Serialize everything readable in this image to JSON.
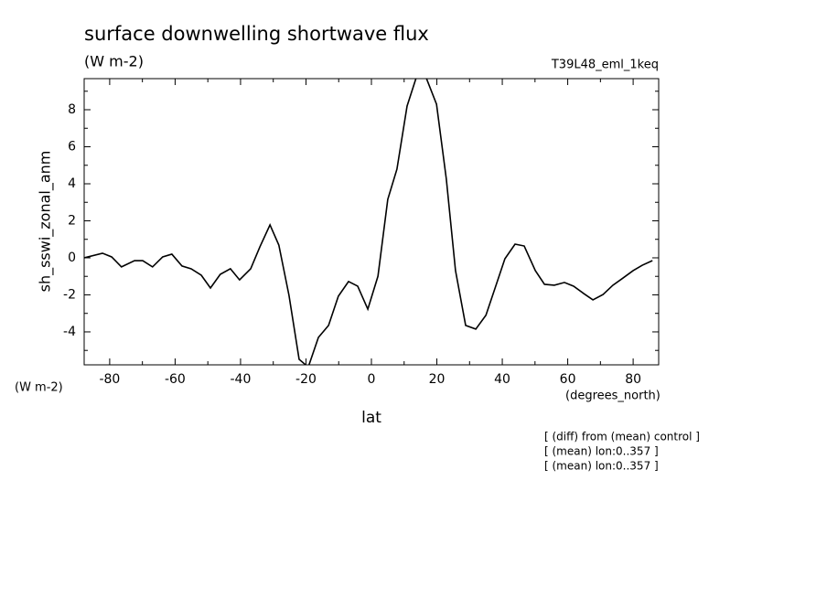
{
  "chart_data": {
    "type": "line",
    "title": "surface downwelling shortwave flux",
    "subtitle": "(W m-2)",
    "dataset": "T39L48_eml_1keq",
    "y_label": "sh_sswi_zonal_anm",
    "y_units": "(W m-2)",
    "x_units": "(degrees_north)",
    "x_label": "lat",
    "notes": [
      "[ (diff) from (mean) control ]",
      "[ (mean) lon:0..357 ]",
      "[ (mean) lon:0..357 ]"
    ],
    "xlim": [
      -87.8,
      87.8
    ],
    "ylim": [
      -5.78,
      9.68
    ],
    "xticks": [
      -80,
      -60,
      -40,
      -20,
      0,
      20,
      40,
      60,
      80
    ],
    "yticks": [
      -4,
      -2,
      0,
      2,
      4,
      6,
      8
    ],
    "series": [
      {
        "color": "#000000",
        "x": [
          -87.8,
          -82.2,
          -79.4,
          -76.4,
          -72.4,
          -69.9,
          -66.9,
          -63.8,
          -61.0,
          -57.9,
          -55.1,
          -52.0,
          -49.2,
          -46.2,
          -43.1,
          -40.3,
          -36.9,
          -34.1,
          -31.0,
          -28.3,
          -25.2,
          -22.1,
          -19.3,
          -16.2,
          -13.1,
          -10.1,
          -7.0,
          -4.2,
          -1.1,
          2.0,
          5.0,
          7.8,
          10.9,
          14.0,
          16.8,
          19.9,
          22.9,
          25.7,
          28.8,
          31.9,
          35.0,
          37.8,
          40.8,
          43.9,
          46.7,
          50.1,
          52.9,
          55.9,
          59.0,
          61.8,
          64.9,
          67.7,
          70.8,
          73.8,
          76.9,
          80.0,
          82.8,
          85.9
        ],
        "values": [
          0.0,
          0.25,
          0.05,
          -0.49,
          -0.15,
          -0.15,
          -0.49,
          0.05,
          0.2,
          -0.44,
          -0.59,
          -0.94,
          -1.63,
          -0.89,
          -0.59,
          -1.19,
          -0.59,
          0.59,
          1.78,
          0.69,
          -2.02,
          -5.48,
          -5.9,
          -4.3,
          -3.65,
          -2.07,
          -1.28,
          -1.53,
          -2.77,
          -0.99,
          3.16,
          4.79,
          8.2,
          9.9,
          9.7,
          8.3,
          4.25,
          -0.69,
          -3.65,
          -3.85,
          -3.1,
          -1.63,
          -0.05,
          0.74,
          0.64,
          -0.69,
          -1.43,
          -1.48,
          -1.33,
          -1.53,
          -1.93,
          -2.27,
          -1.98,
          -1.48,
          -1.09,
          -0.69,
          -0.4,
          -0.15
        ]
      }
    ]
  }
}
